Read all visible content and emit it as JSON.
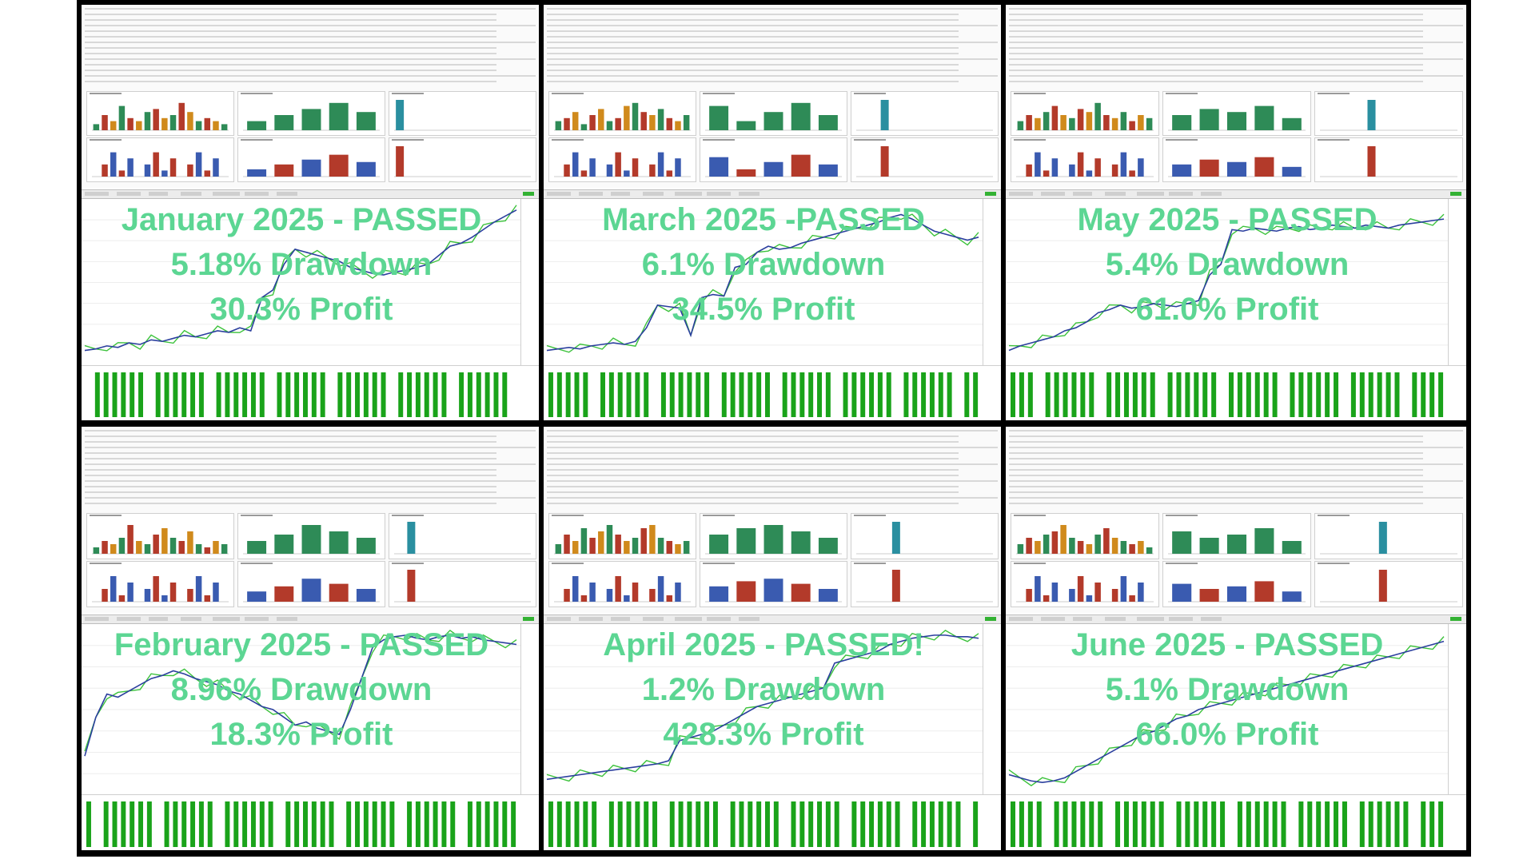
{
  "panels": [
    {
      "id": "jan",
      "title": "January 2025 - PASSED",
      "drawdown": "5.18% Drawdown",
      "profit": "30.3% Profit",
      "curve": [
        0.05,
        0.06,
        0.08,
        0.07,
        0.1,
        0.09,
        0.12,
        0.11,
        0.13,
        0.15,
        0.14,
        0.16,
        0.18,
        0.17,
        0.2,
        0.18,
        0.4,
        0.45,
        0.62,
        0.72,
        0.7,
        0.68,
        0.66,
        0.64,
        0.6,
        0.58,
        0.56,
        0.55,
        0.57,
        0.58,
        0.6,
        0.62,
        0.68,
        0.74,
        0.76,
        0.8,
        0.85,
        0.9,
        0.94,
        0.98
      ],
      "hourly": [
        0.2,
        0.5,
        0.3,
        0.8,
        0.4,
        0.3,
        0.6,
        0.7,
        0.4,
        0.5,
        0.9,
        0.6,
        0.3,
        0.4,
        0.3,
        0.2
      ],
      "weekday": [
        0.3,
        0.5,
        0.7,
        0.9,
        0.6
      ],
      "months": [
        1.0,
        0,
        0,
        0,
        0,
        0,
        0,
        0,
        0,
        0,
        0,
        0
      ]
    },
    {
      "id": "mar",
      "title": "March 2025 -PASSED",
      "drawdown": "6.1% Drawdown",
      "profit": "34.5% Profit",
      "curve": [
        0.05,
        0.06,
        0.07,
        0.06,
        0.08,
        0.09,
        0.1,
        0.09,
        0.11,
        0.2,
        0.35,
        0.34,
        0.33,
        0.15,
        0.4,
        0.42,
        0.41,
        0.6,
        0.62,
        0.7,
        0.74,
        0.72,
        0.73,
        0.76,
        0.78,
        0.8,
        0.82,
        0.84,
        0.86,
        0.88,
        0.9,
        0.93,
        0.95,
        0.92,
        0.88,
        0.84,
        0.82,
        0.8,
        0.78,
        0.8
      ],
      "hourly": [
        0.3,
        0.4,
        0.6,
        0.2,
        0.5,
        0.7,
        0.3,
        0.4,
        0.8,
        0.9,
        0.6,
        0.5,
        0.7,
        0.4,
        0.3,
        0.5
      ],
      "weekday": [
        0.8,
        0.3,
        0.6,
        0.9,
        0.5
      ],
      "months": [
        0,
        0,
        1.0,
        0,
        0,
        0,
        0,
        0,
        0,
        0,
        0,
        0
      ]
    },
    {
      "id": "may",
      "title": "May 2025 - PASSED",
      "drawdown": "5.4% Drawdown",
      "profit": "61.0% Profit",
      "curve": [
        0.05,
        0.08,
        0.1,
        0.12,
        0.14,
        0.18,
        0.2,
        0.24,
        0.3,
        0.32,
        0.35,
        0.33,
        0.34,
        0.36,
        0.35,
        0.34,
        0.36,
        0.38,
        0.55,
        0.62,
        0.85,
        0.84,
        0.86,
        0.85,
        0.84,
        0.86,
        0.87,
        0.85,
        0.86,
        0.88,
        0.87,
        0.86,
        0.88,
        0.87,
        0.86,
        0.88,
        0.89,
        0.9,
        0.91,
        0.92
      ],
      "hourly": [
        0.3,
        0.5,
        0.4,
        0.6,
        0.8,
        0.5,
        0.4,
        0.7,
        0.6,
        0.9,
        0.5,
        0.4,
        0.6,
        0.3,
        0.5,
        0.4
      ],
      "weekday": [
        0.5,
        0.7,
        0.6,
        0.8,
        0.4
      ],
      "months": [
        0,
        0,
        0,
        0,
        1.0,
        0,
        0,
        0,
        0,
        0,
        0,
        0
      ]
    },
    {
      "id": "feb",
      "title": "February 2025 - PASSED",
      "drawdown": "8.96% Drawdown",
      "profit": "18.3% Profit",
      "curve": [
        0.2,
        0.45,
        0.6,
        0.58,
        0.62,
        0.66,
        0.7,
        0.72,
        0.75,
        0.73,
        0.7,
        0.68,
        0.66,
        0.62,
        0.6,
        0.56,
        0.52,
        0.5,
        0.45,
        0.4,
        0.42,
        0.38,
        0.36,
        0.34,
        0.5,
        0.7,
        0.9,
        0.95,
        0.97,
        0.98,
        0.96,
        0.95,
        0.97,
        0.98,
        0.96,
        0.97,
        0.95,
        0.94,
        0.93,
        0.92
      ],
      "hourly": [
        0.2,
        0.4,
        0.3,
        0.5,
        0.9,
        0.4,
        0.3,
        0.6,
        0.8,
        0.5,
        0.4,
        0.7,
        0.3,
        0.2,
        0.4,
        0.3
      ],
      "weekday": [
        0.4,
        0.6,
        0.9,
        0.7,
        0.5
      ],
      "months": [
        0,
        1.0,
        0,
        0,
        0,
        0,
        0,
        0,
        0,
        0,
        0,
        0
      ]
    },
    {
      "id": "apr",
      "title": "April 2025 - PASSED!",
      "drawdown": "1.2% Drawdown",
      "profit": "428.3% Profit",
      "curve": [
        0.05,
        0.06,
        0.07,
        0.08,
        0.09,
        0.1,
        0.11,
        0.12,
        0.13,
        0.14,
        0.15,
        0.17,
        0.3,
        0.32,
        0.34,
        0.36,
        0.4,
        0.44,
        0.48,
        0.52,
        0.54,
        0.56,
        0.58,
        0.6,
        0.62,
        0.64,
        0.8,
        0.82,
        0.84,
        0.86,
        0.88,
        0.92,
        0.94,
        0.96,
        0.97,
        0.98,
        0.98,
        0.97,
        0.97,
        0.96
      ],
      "hourly": [
        0.3,
        0.6,
        0.4,
        0.8,
        0.5,
        0.7,
        0.9,
        0.6,
        0.4,
        0.5,
        0.8,
        0.9,
        0.5,
        0.4,
        0.3,
        0.4
      ],
      "weekday": [
        0.6,
        0.8,
        0.9,
        0.7,
        0.5
      ],
      "months": [
        0,
        0,
        0,
        1.0,
        0,
        0,
        0,
        0,
        0,
        0,
        0,
        0
      ]
    },
    {
      "id": "jun",
      "title": "June 2025 - PASSED",
      "drawdown": "5.1% Drawdown",
      "profit": "66.0% Profit",
      "curve": [
        0.08,
        0.06,
        0.04,
        0.03,
        0.04,
        0.06,
        0.1,
        0.14,
        0.18,
        0.22,
        0.26,
        0.3,
        0.34,
        0.36,
        0.4,
        0.44,
        0.46,
        0.5,
        0.52,
        0.54,
        0.56,
        0.58,
        0.6,
        0.62,
        0.64,
        0.66,
        0.68,
        0.7,
        0.72,
        0.74,
        0.76,
        0.78,
        0.8,
        0.82,
        0.84,
        0.86,
        0.88,
        0.9,
        0.92,
        0.94
      ],
      "hourly": [
        0.3,
        0.5,
        0.4,
        0.6,
        0.7,
        0.9,
        0.5,
        0.4,
        0.3,
        0.6,
        0.8,
        0.5,
        0.4,
        0.3,
        0.4,
        0.2
      ],
      "weekday": [
        0.7,
        0.5,
        0.6,
        0.8,
        0.4
      ],
      "months": [
        0,
        0,
        0,
        0,
        0,
        1.0,
        0,
        0,
        0,
        0,
        0,
        0
      ]
    }
  ],
  "colors": {
    "caption": "#5cd693",
    "balance": "#2b3f9e",
    "equity": "#3cc23c",
    "volume": "#1aa31a",
    "bar_green": "#2e8b57",
    "bar_red": "#b33a2a",
    "bar_blue": "#3a5bb0",
    "bar_orange": "#d08a1c",
    "bar_teal": "#2a8fa0"
  }
}
